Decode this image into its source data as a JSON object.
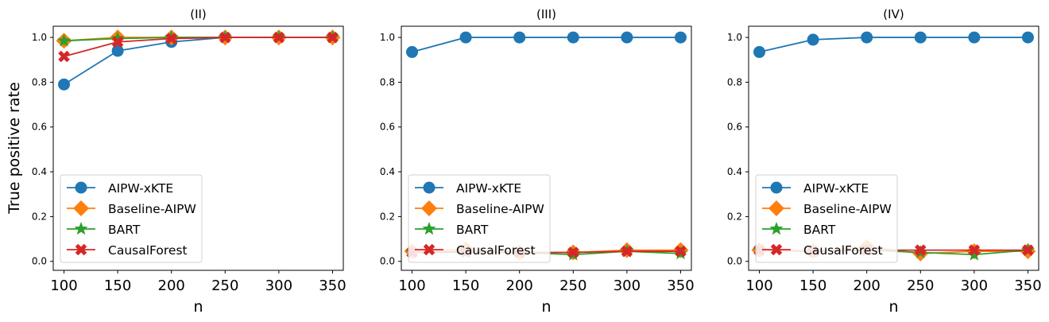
{
  "figure_ylabel": "True positive rate",
  "chart_data": [
    {
      "type": "line",
      "title": "(II)",
      "xlabel": "n",
      "ylabel": "True positive rate",
      "x": [
        100,
        150,
        200,
        250,
        300,
        350
      ],
      "xticks": [
        "100",
        "150",
        "200",
        "250",
        "300",
        "350"
      ],
      "yticks": [
        "0.0",
        "0.2",
        "0.4",
        "0.6",
        "0.8",
        "1.0"
      ],
      "xlim": [
        90,
        360
      ],
      "ylim": [
        -0.04,
        1.05
      ],
      "legend_position": "lower-left",
      "series": [
        {
          "name": "AIPW-xKTE",
          "color": "#1f77b4",
          "marker": "circle",
          "values": [
            0.79,
            0.94,
            0.98,
            1.0,
            1.0,
            1.0
          ]
        },
        {
          "name": "Baseline-AIPW",
          "color": "#ff7f0e",
          "marker": "diamond",
          "values": [
            0.985,
            1.0,
            1.0,
            1.0,
            1.0,
            1.0
          ]
        },
        {
          "name": "BART",
          "color": "#2ca02c",
          "marker": "star",
          "values": [
            0.985,
            0.995,
            1.0,
            1.0,
            1.0,
            1.0
          ]
        },
        {
          "name": "CausalForest",
          "color": "#d62728",
          "marker": "x",
          "values": [
            0.915,
            0.98,
            0.995,
            1.0,
            1.0,
            1.0
          ]
        }
      ]
    },
    {
      "type": "line",
      "title": "(III)",
      "xlabel": "n",
      "ylabel": "",
      "x": [
        100,
        150,
        200,
        250,
        300,
        350
      ],
      "xticks": [
        "100",
        "150",
        "200",
        "250",
        "300",
        "350"
      ],
      "yticks": [
        "0.0",
        "0.2",
        "0.4",
        "0.6",
        "0.8",
        "1.0"
      ],
      "xlim": [
        90,
        360
      ],
      "ylim": [
        -0.04,
        1.05
      ],
      "legend_position": "lower-left",
      "series": [
        {
          "name": "AIPW-xKTE",
          "color": "#1f77b4",
          "marker": "circle",
          "values": [
            0.935,
            1.0,
            1.0,
            1.0,
            1.0,
            1.0
          ]
        },
        {
          "name": "Baseline-AIPW",
          "color": "#ff7f0e",
          "marker": "diamond",
          "values": [
            0.045,
            0.055,
            0.04,
            0.04,
            0.05,
            0.05
          ]
        },
        {
          "name": "BART",
          "color": "#2ca02c",
          "marker": "star",
          "values": [
            0.04,
            0.04,
            0.04,
            0.03,
            0.045,
            0.035
          ]
        },
        {
          "name": "CausalForest",
          "color": "#d62728",
          "marker": "x",
          "values": [
            0.04,
            0.045,
            0.04,
            0.04,
            0.045,
            0.045
          ]
        }
      ]
    },
    {
      "type": "line",
      "title": "(IV)",
      "xlabel": "n",
      "ylabel": "",
      "x": [
        100,
        150,
        200,
        250,
        300,
        350
      ],
      "xticks": [
        "100",
        "150",
        "200",
        "250",
        "300",
        "350"
      ],
      "yticks": [
        "0.0",
        "0.2",
        "0.4",
        "0.6",
        "0.8",
        "1.0"
      ],
      "xlim": [
        90,
        360
      ],
      "ylim": [
        -0.04,
        1.05
      ],
      "legend_position": "lower-left",
      "series": [
        {
          "name": "AIPW-xKTE",
          "color": "#1f77b4",
          "marker": "circle",
          "values": [
            0.935,
            0.99,
            1.0,
            1.0,
            1.0,
            1.0
          ]
        },
        {
          "name": "Baseline-AIPW",
          "color": "#ff7f0e",
          "marker": "diamond",
          "values": [
            0.05,
            0.045,
            0.065,
            0.035,
            0.045,
            0.045
          ]
        },
        {
          "name": "BART",
          "color": "#2ca02c",
          "marker": "star",
          "values": [
            0.05,
            0.045,
            0.05,
            0.04,
            0.03,
            0.05
          ]
        },
        {
          "name": "CausalForest",
          "color": "#d62728",
          "marker": "x",
          "values": [
            0.05,
            0.045,
            0.05,
            0.05,
            0.05,
            0.05
          ]
        }
      ]
    }
  ]
}
